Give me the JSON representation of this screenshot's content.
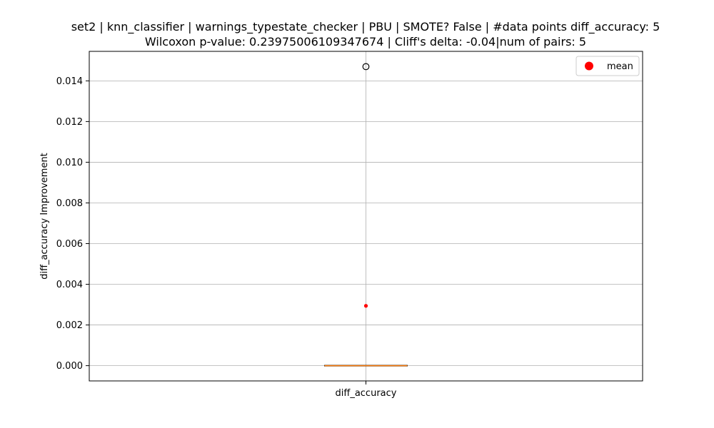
{
  "chart_data": {
    "type": "box",
    "title_line1": "set2 | knn_classifier | warnings_typestate_checker | PBU | SMOTE? False | #data points diff_accuracy: 5",
    "title_line2": "Wilcoxon p-value: 0.23975006109347674 | Cliff's delta: -0.04|num of pairs: 5",
    "xlabel": "",
    "ylabel": "diff_accuracy Improvement",
    "categories": [
      "diff_accuracy"
    ],
    "ylim": [
      -0.00075,
      0.01545
    ],
    "yticks": [
      0.0,
      0.002,
      0.004,
      0.006,
      0.008,
      0.01,
      0.012,
      0.014
    ],
    "ytick_labels": [
      "0.000",
      "0.002",
      "0.004",
      "0.006",
      "0.008",
      "0.010",
      "0.012",
      "0.014"
    ],
    "grid": true,
    "box": {
      "whisker_low": 0.0,
      "q1": 0.0,
      "median": 0.0,
      "q3": 0.0,
      "whisker_high": 0.0,
      "outliers": [
        0.0147
      ],
      "mean": 0.00294
    },
    "legend": {
      "placement": "top-right",
      "entries": [
        {
          "label": "mean",
          "color": "#ff0000"
        }
      ]
    },
    "colors": {
      "median": "#ff7f0e",
      "mean": "#ff0000",
      "grid": "#b0b0b0",
      "box": "#000000"
    }
  }
}
